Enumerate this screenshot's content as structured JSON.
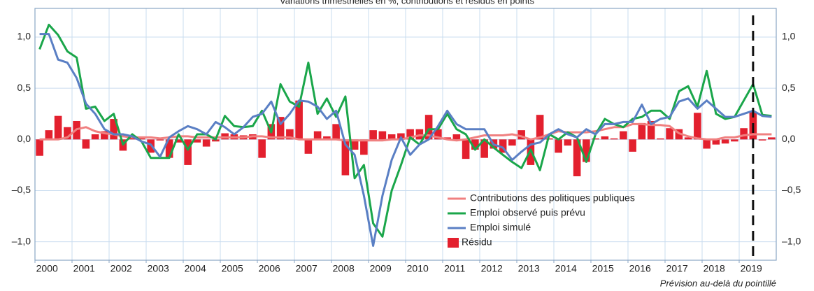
{
  "chart_data": {
    "type": "bar_line",
    "title": "Variations trimestrielles en %, contributions et résidus en points",
    "annotation": "Prévision au-delà du pointillé",
    "categories": [
      "2000",
      null,
      null,
      null,
      "2001",
      null,
      null,
      null,
      "2002",
      null,
      null,
      null,
      "2003",
      null,
      null,
      null,
      "2004",
      null,
      null,
      null,
      "2005",
      null,
      null,
      null,
      "2006",
      null,
      null,
      null,
      "2007",
      null,
      null,
      null,
      "2008",
      null,
      null,
      null,
      "2009",
      null,
      null,
      null,
      "2010",
      null,
      null,
      null,
      "2011",
      null,
      null,
      null,
      "2012",
      null,
      null,
      null,
      "2013",
      null,
      null,
      null,
      "2014",
      null,
      null,
      null,
      "2015",
      null,
      null,
      null,
      "2016",
      null,
      null,
      null,
      "2017",
      null,
      null,
      null,
      "2018",
      null,
      null,
      null,
      "2019",
      null,
      null,
      null
    ],
    "ylim": [
      -1.18,
      1.28
    ],
    "yticks": [
      {
        "value": -1.0,
        "label": "–1,0"
      },
      {
        "value": -0.5,
        "label": "–0,5"
      },
      {
        "value": 0,
        "label": "0,0"
      },
      {
        "value": 0.5,
        "label": "0,5"
      },
      {
        "value": 1.0,
        "label": "1,0"
      }
    ],
    "grid": true,
    "series": [
      {
        "name": "Contributions des politiques publiques",
        "kind": "line",
        "color": "#f08080",
        "values": [
          0,
          0,
          0,
          0.02,
          0.1,
          0.12,
          0.08,
          0.06,
          0.05,
          0.03,
          0.02,
          0.02,
          0.02,
          0.01,
          0.02,
          0.03,
          0.03,
          0.02,
          0.02,
          0.02,
          0.02,
          0.02,
          0.02,
          0.03,
          0.03,
          0.02,
          0.02,
          0.02,
          0,
          0,
          0,
          0,
          0,
          -0.01,
          -0.01,
          -0.01,
          -0.01,
          -0.01,
          0,
          0,
          0.02,
          0.04,
          0.04,
          0.02,
          0,
          -0.01,
          0,
          0.02,
          0.04,
          0.04,
          0.04,
          0.05,
          0.03,
          0,
          0.02,
          0.05,
          0.08,
          0.07,
          0.07,
          0.07,
          0.08,
          0.1,
          0.12,
          0.12,
          0.15,
          0.15,
          0.14,
          0.14,
          0.13,
          0.06,
          0.03,
          0.01,
          0,
          0,
          0.02,
          0.02,
          0.04,
          0.05,
          0.05,
          0.05
        ]
      },
      {
        "name": "Emploi observé puis prévu",
        "kind": "line",
        "color": "#1aa64a",
        "values": [
          0.88,
          1.12,
          1.02,
          0.86,
          0.8,
          0.3,
          0.32,
          0.18,
          0.25,
          -0.05,
          0.05,
          -0.02,
          -0.18,
          -0.18,
          -0.18,
          0.05,
          -0.1,
          0.05,
          0.05,
          0,
          0.23,
          0.13,
          0.12,
          0.13,
          0.28,
          0.07,
          0.54,
          0.37,
          0.32,
          0.75,
          0.25,
          0.4,
          0.22,
          0.42,
          -0.38,
          -0.25,
          -0.82,
          -0.95,
          -0.5,
          -0.25,
          0.02,
          -0.05,
          0.1,
          0.1,
          0.25,
          0.1,
          0.05,
          -0.1,
          0,
          -0.08,
          -0.15,
          -0.22,
          -0.28,
          -0.1,
          -0.3,
          0.05,
          0,
          0.07,
          0.02,
          -0.22,
          0.05,
          0.2,
          0.15,
          0.12,
          0.2,
          0.22,
          0.28,
          0.28,
          0.2,
          0.47,
          0.52,
          0.32,
          0.67,
          0.25,
          0.2,
          0.22,
          0.38,
          0.54,
          0.24,
          0.23
        ]
      },
      {
        "name": "Emploi simulé",
        "kind": "line",
        "color": "#5a7fc4",
        "values": [
          1.03,
          1.03,
          0.78,
          0.75,
          0.6,
          0.35,
          0.25,
          0.1,
          0.05,
          0.05,
          0.03,
          -0.02,
          -0.05,
          -0.17,
          0.02,
          0.08,
          0.13,
          0.1,
          0.05,
          0.17,
          0.12,
          0.05,
          0.12,
          0.22,
          0.25,
          0.37,
          0.15,
          0.25,
          0.38,
          0.37,
          0.32,
          0.2,
          0.28,
          -0.05,
          -0.15,
          -0.55,
          -1.04,
          -0.55,
          -0.2,
          0.02,
          -0.15,
          -0.05,
          0,
          0.13,
          0.28,
          0.15,
          0.1,
          0.1,
          0.1,
          -0.05,
          -0.08,
          -0.2,
          -0.12,
          -0.05,
          -0.03,
          0.05,
          0.1,
          0.05,
          0.02,
          0.1,
          0.05,
          0.15,
          0.15,
          0.17,
          0.17,
          0.34,
          0.15,
          0.2,
          0.22,
          0.37,
          0.4,
          0.3,
          0.38,
          0.3,
          0.22,
          0.22,
          0.25,
          0.28,
          0.23,
          0.22
        ]
      },
      {
        "name": "Résidu",
        "kind": "bar",
        "color": "#e3202e",
        "values": [
          -0.16,
          0.09,
          0.23,
          0.12,
          0.18,
          -0.09,
          0.05,
          0.08,
          0.2,
          -0.11,
          0.03,
          0.01,
          -0.13,
          -0.01,
          -0.18,
          -0.03,
          -0.25,
          -0.03,
          -0.07,
          -0.02,
          0.06,
          0.05,
          0.04,
          0.05,
          -0.18,
          0.15,
          0.22,
          0.1,
          0.38,
          -0.14,
          0.08,
          0.03,
          0.15,
          -0.35,
          -0.1,
          -0.15,
          0.09,
          0.08,
          0.05,
          0.06,
          0.1,
          0.1,
          0.24,
          0.1,
          0.02,
          0.05,
          -0.19,
          -0.1,
          -0.18,
          -0.09,
          -0.13,
          -0.06,
          0.09,
          -0.25,
          0.24,
          0.01,
          -0.13,
          -0.06,
          -0.36,
          -0.22,
          0.01,
          0.03,
          0.01,
          0.08,
          -0.12,
          0.16,
          0.18,
          0.01,
          0.11,
          0.1,
          0.02,
          0.26,
          -0.09,
          -0.05,
          -0.04,
          -0.02,
          0.11,
          0.27,
          -0.01,
          0.02
        ]
      }
    ]
  }
}
